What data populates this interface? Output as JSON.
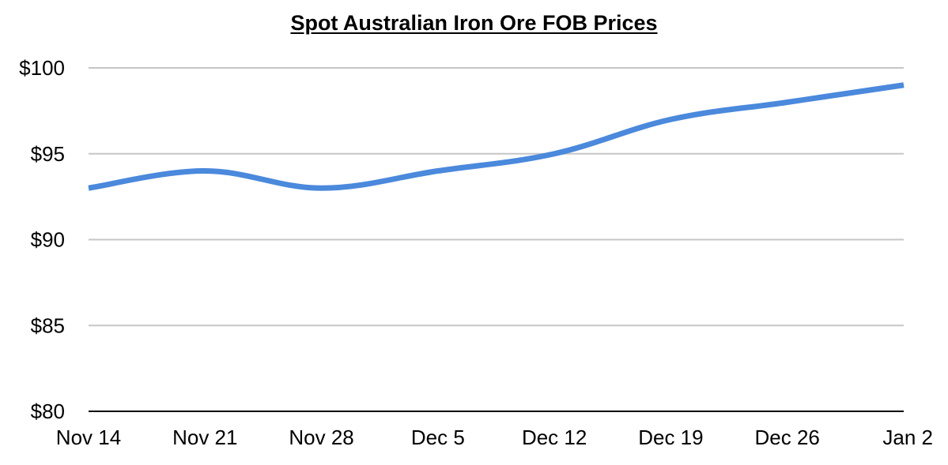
{
  "chart_data": {
    "type": "line",
    "title": "Spot Australian Iron Ore FOB Prices",
    "xlabel": "",
    "ylabel": "",
    "categories": [
      "Nov 14",
      "Nov 21",
      "Nov 28",
      "Dec 5",
      "Dec 12",
      "Dec 19",
      "Dec 26",
      "Jan 2"
    ],
    "series": [
      {
        "values": [
          93,
          94,
          93,
          94,
          95,
          97,
          98,
          99
        ]
      }
    ],
    "ylim": [
      80,
      100
    ],
    "yticks": [
      80,
      85,
      90,
      95,
      100
    ],
    "ytick_labels": [
      "$80",
      "$85",
      "$90",
      "$95",
      "$100"
    ],
    "grid": true,
    "legend": "none",
    "colors": {
      "line": "#4a89dc",
      "grid": "#c6c6c6",
      "axis": "#000000"
    }
  }
}
